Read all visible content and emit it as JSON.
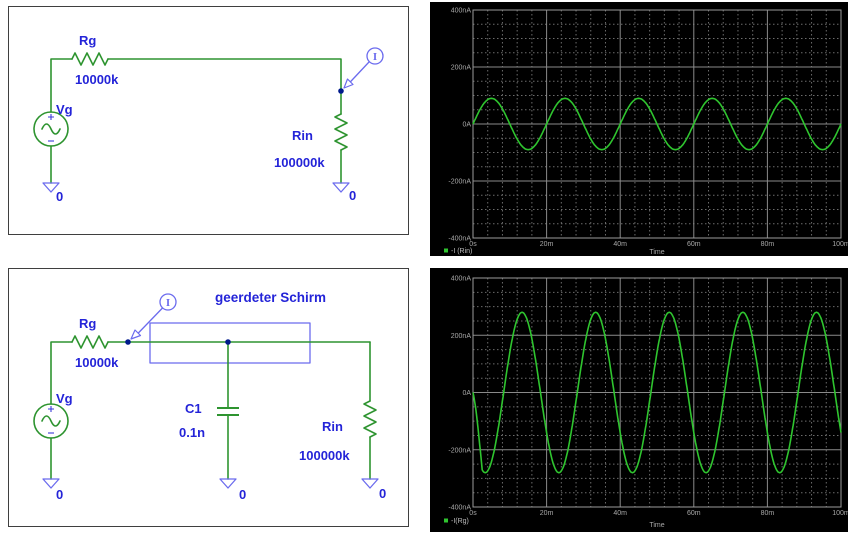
{
  "panels": {
    "schematic_top": {
      "source_label": "Vg",
      "r1_label": "Rg",
      "r1_value": "10000k",
      "r2_label": "Rin",
      "r2_value": "100000k",
      "probe_label": "I",
      "ground_labels": [
        "0",
        "0"
      ]
    },
    "schematic_bottom": {
      "shield_label": "geerdeter Schirm",
      "source_label": "Vg",
      "r1_label": "Rg",
      "r1_value": "10000k",
      "cap_label": "C1",
      "cap_value": "0.1n",
      "r2_label": "Rin",
      "r2_value": "100000k",
      "probe_label": "I",
      "ground_labels": [
        "0",
        "0",
        "0"
      ]
    }
  },
  "colors": {
    "wire_green": "#2e9430",
    "label_blue": "#2424d8",
    "symbol_blue": "#6b6bee",
    "node_dot": "#001a8c",
    "plot_background": "#000000",
    "grid_major": "#8a8a8a",
    "grid_minor": "#6c6c6c",
    "frame": "#9c9c9c",
    "trace_green": "#2fc52f",
    "tick_text": "#a8a8a8"
  },
  "chart_data": [
    {
      "type": "line",
      "title": "",
      "xlabel": "Time",
      "ylabel": "",
      "x_tick_labels": [
        "0s",
        "20m",
        "40m",
        "60m",
        "80m",
        "100m"
      ],
      "y_tick_labels": [
        "400nA",
        "200nA",
        "0A",
        "-200nA",
        "-400nA"
      ],
      "y_tick_values_nA": [
        400,
        200,
        0,
        -200,
        -400
      ],
      "x_tick_values_ms": [
        0,
        20,
        40,
        60,
        80,
        100
      ],
      "xlim_ms": [
        0,
        100
      ],
      "ylim_nA": [
        -400,
        400
      ],
      "x_major_ms": 20,
      "x_minor_ms": 4,
      "y_major_nA": 200,
      "y_minor_nA": 50,
      "grid": "major-solid-minor-dashed",
      "legend_position": "bottom-left",
      "legend": "-I (Rin)",
      "series": [
        {
          "name": "-I (Rin)",
          "color": "#2fc52f",
          "waveform": "sine",
          "amplitude_nA": 90,
          "frequency_hz": 50,
          "period_ms": 20,
          "phase_deg": 0,
          "startup_ms": 0,
          "cycles_shown": 5
        }
      ]
    },
    {
      "type": "line",
      "title": "",
      "xlabel": "Time",
      "ylabel": "",
      "x_tick_labels": [
        "0s",
        "20m",
        "40m",
        "60m",
        "80m",
        "100m"
      ],
      "y_tick_labels": [
        "400nA",
        "200nA",
        "0A",
        "-200nA",
        "-400nA"
      ],
      "y_tick_values_nA": [
        400,
        200,
        0,
        -200,
        -400
      ],
      "x_tick_values_ms": [
        0,
        20,
        40,
        60,
        80,
        100
      ],
      "xlim_ms": [
        0,
        100
      ],
      "ylim_nA": [
        -400,
        400
      ],
      "x_major_ms": 20,
      "x_minor_ms": 4,
      "y_major_nA": 200,
      "y_minor_nA": 50,
      "grid": "major-solid-minor-dashed",
      "legend_position": "bottom-left",
      "legend": "-I(Rg)",
      "series": [
        {
          "name": "-I(Rg)",
          "color": "#2fc52f",
          "waveform": "sine",
          "amplitude_nA": 280,
          "frequency_hz": 50,
          "period_ms": 20,
          "phase_deg": 210,
          "startup_ms": 2.5,
          "cycles_shown": 5
        }
      ]
    }
  ]
}
